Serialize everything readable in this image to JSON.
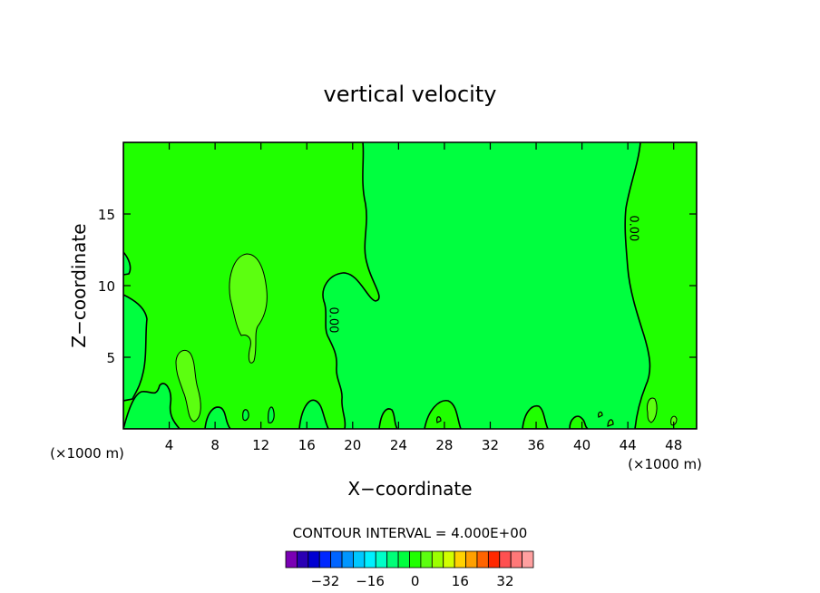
{
  "chart_data": {
    "type": "contour",
    "title": "vertical velocity",
    "xlabel": "X−coordinate",
    "ylabel": "Z−coordinate",
    "x_unit_left": "(×1000 m)",
    "x_unit_right": "(×1000 m)",
    "xlim": [
      0,
      50
    ],
    "ylim": [
      0,
      20
    ],
    "x_ticks": [
      4,
      8,
      12,
      16,
      20,
      24,
      28,
      32,
      36,
      40,
      44,
      48
    ],
    "x_tick_labels": [
      "4",
      "8",
      "12",
      "16",
      "20",
      "24",
      "28",
      "32",
      "36",
      "40",
      "44",
      "48"
    ],
    "y_ticks": [
      5,
      10,
      15
    ],
    "y_tick_labels": [
      "5",
      "10",
      "15"
    ],
    "contour_interval_text": "CONTOUR INTERVAL = 4.000E+00",
    "contour_labels": [
      {
        "text": "0.00",
        "x": 18.0,
        "y": 7.6
      },
      {
        "text": "0.00",
        "x": 44.2,
        "y": 14.0
      }
    ],
    "field_colors": {
      "negative": "#00ff3f",
      "zero_to_4": "#20ff00",
      "four_to_8": "#5cff10"
    },
    "colorbar": {
      "levels": [
        -36,
        -32,
        -28,
        -24,
        -20,
        -16,
        -12,
        -8,
        -4,
        0,
        4,
        8,
        12,
        16,
        20,
        24,
        28,
        32,
        36
      ],
      "colors": [
        "#7a00b4",
        "#2a00b4",
        "#0000d2",
        "#0028ff",
        "#0064ff",
        "#0096ff",
        "#00c8ff",
        "#00f0ff",
        "#00ffc8",
        "#00ff78",
        "#00ff3f",
        "#20ff00",
        "#5cff10",
        "#9cff00",
        "#d2ff00",
        "#ffd200",
        "#ffa000",
        "#ff6400",
        "#ff2800",
        "#ff5050",
        "#ff7878",
        "#ffa0a0"
      ],
      "tick_labels": [
        {
          "value": -32,
          "label": "−32"
        },
        {
          "value": -16,
          "label": "−16"
        },
        {
          "value": 0,
          "label": "0"
        },
        {
          "value": 16,
          "label": "16"
        },
        {
          "value": 32,
          "label": "32"
        }
      ]
    }
  }
}
